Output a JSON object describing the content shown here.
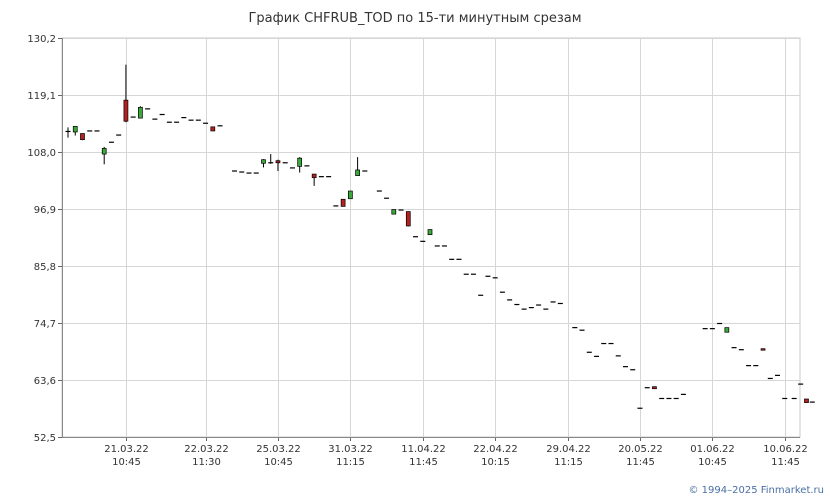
{
  "title": "График CHFRUB_TOD по 15-ти минутным срезам",
  "copyright": "© 1994–2025 Finmarket.ru",
  "chart_data": {
    "type": "candlestick",
    "title": "График CHFRUB_TOD по 15-ти минутным срезам",
    "xlabel": "",
    "ylabel": "",
    "ylim": [
      52.5,
      130.2
    ],
    "y_ticks": [
      "52,5",
      "63,6",
      "74,7",
      "85,8",
      "96,9",
      "108,0",
      "119,1",
      "130,2"
    ],
    "y_tick_values": [
      52.5,
      63.6,
      74.7,
      85.8,
      96.9,
      108.0,
      119.1,
      130.2
    ],
    "grid": true,
    "up_color": "#3aa83a",
    "down_color": "#b22222",
    "neutral_color": "#000000",
    "x_ticks": [
      {
        "index": 8,
        "date": "21.03.22",
        "time": "10:45"
      },
      {
        "index": 19,
        "date": "22.03.22",
        "time": "11:30"
      },
      {
        "index": 29,
        "date": "25.03.22",
        "time": "10:45"
      },
      {
        "index": 39,
        "date": "31.03.22",
        "time": "11:15"
      },
      {
        "index": 49,
        "date": "11.04.22",
        "time": "11:45"
      },
      {
        "index": 59,
        "date": "22.04.22",
        "time": "10:15"
      },
      {
        "index": 69,
        "date": "29.04.22",
        "time": "11:15"
      },
      {
        "index": 79,
        "date": "20.05.22",
        "time": "11:45"
      },
      {
        "index": 89,
        "date": "01.06.22",
        "time": "10:45"
      },
      {
        "index": 99,
        "date": "10.06.22",
        "time": "11:45"
      }
    ],
    "x_count": 100,
    "candles": [
      {
        "o": 112.0,
        "h": 112.8,
        "l": 110.8,
        "c": 112.0
      },
      {
        "o": 111.9,
        "h": 113.0,
        "l": 111.2,
        "c": 113.0
      },
      {
        "o": 111.6,
        "h": 111.6,
        "l": 110.3,
        "c": 110.4
      },
      {
        "o": 112.1,
        "h": 112.1,
        "l": 112.1,
        "c": 112.1
      },
      {
        "o": 112.1,
        "h": 112.1,
        "l": 112.1,
        "c": 112.1
      },
      {
        "o": 107.6,
        "h": 109.0,
        "l": 105.6,
        "c": 108.7
      },
      {
        "o": 109.9,
        "h": 109.9,
        "l": 109.9,
        "c": 109.9
      },
      {
        "o": 111.3,
        "h": 111.3,
        "l": 111.3,
        "c": 111.3
      },
      {
        "o": 118.1,
        "h": 125.0,
        "l": 113.8,
        "c": 114.0
      },
      {
        "o": 114.8,
        "h": 114.8,
        "l": 114.8,
        "c": 114.8
      },
      {
        "o": 114.6,
        "h": 116.9,
        "l": 114.6,
        "c": 116.7
      },
      {
        "o": 116.4,
        "h": 116.4,
        "l": 116.4,
        "c": 116.4
      },
      {
        "o": 114.4,
        "h": 114.4,
        "l": 114.4,
        "c": 114.4
      },
      {
        "o": 115.3,
        "h": 115.3,
        "l": 115.3,
        "c": 115.3
      },
      {
        "o": 113.8,
        "h": 113.8,
        "l": 113.8,
        "c": 113.8
      },
      {
        "o": 113.8,
        "h": 113.8,
        "l": 113.8,
        "c": 113.8
      },
      {
        "o": 114.7,
        "h": 114.7,
        "l": 114.7,
        "c": 114.7
      },
      {
        "o": 114.2,
        "h": 114.2,
        "l": 114.2,
        "c": 114.2
      },
      {
        "o": 114.2,
        "h": 114.2,
        "l": 114.2,
        "c": 114.2
      },
      {
        "o": 113.6,
        "h": 113.6,
        "l": 113.6,
        "c": 113.6
      },
      {
        "o": 112.9,
        "h": 112.9,
        "l": 112.1,
        "c": 112.1
      },
      {
        "o": 113.1,
        "h": 113.1,
        "l": 113.1,
        "c": 113.1
      },
      {
        "o": null,
        "h": null,
        "l": null,
        "c": null
      },
      {
        "o": 104.3,
        "h": 104.3,
        "l": 104.3,
        "c": 104.3
      },
      {
        "o": 104.1,
        "h": 104.1,
        "l": 104.1,
        "c": 104.1
      },
      {
        "o": 103.9,
        "h": 103.9,
        "l": 103.9,
        "c": 103.9
      },
      {
        "o": 103.9,
        "h": 103.9,
        "l": 103.9,
        "c": 103.9
      },
      {
        "o": 105.8,
        "h": 106.6,
        "l": 105.0,
        "c": 106.5
      },
      {
        "o": 105.9,
        "h": 107.6,
        "l": 105.7,
        "c": 106.1
      },
      {
        "o": 106.3,
        "h": 106.5,
        "l": 104.3,
        "c": 105.9
      },
      {
        "o": 105.9,
        "h": 105.9,
        "l": 105.9,
        "c": 105.9
      },
      {
        "o": 104.9,
        "h": 104.9,
        "l": 104.9,
        "c": 104.9
      },
      {
        "o": 105.2,
        "h": 107.0,
        "l": 104.0,
        "c": 106.8
      },
      {
        "o": 105.3,
        "h": 105.3,
        "l": 105.3,
        "c": 105.3
      },
      {
        "o": 103.7,
        "h": 103.7,
        "l": 101.4,
        "c": 103.0
      },
      {
        "o": 103.2,
        "h": 103.2,
        "l": 103.2,
        "c": 103.2
      },
      {
        "o": 103.2,
        "h": 103.2,
        "l": 103.2,
        "c": 103.2
      },
      {
        "o": 97.5,
        "h": 97.5,
        "l": 97.5,
        "c": 97.5
      },
      {
        "o": 98.8,
        "h": 98.8,
        "l": 97.4,
        "c": 97.4
      },
      {
        "o": 98.9,
        "h": 100.4,
        "l": 98.9,
        "c": 100.4
      },
      {
        "o": 103.4,
        "h": 107.0,
        "l": 103.4,
        "c": 104.5
      },
      {
        "o": 104.3,
        "h": 104.3,
        "l": 104.3,
        "c": 104.3
      },
      {
        "o": null,
        "h": null,
        "l": null,
        "c": null
      },
      {
        "o": 100.4,
        "h": 100.4,
        "l": 100.4,
        "c": 100.4
      },
      {
        "o": 99.0,
        "h": 99.0,
        "l": 99.0,
        "c": 99.0
      },
      {
        "o": 95.9,
        "h": 96.8,
        "l": 95.9,
        "c": 96.8
      },
      {
        "o": 96.7,
        "h": 96.7,
        "l": 96.7,
        "c": 96.7
      },
      {
        "o": 96.4,
        "h": 96.4,
        "l": 93.5,
        "c": 93.6
      },
      {
        "o": 91.5,
        "h": 91.5,
        "l": 91.5,
        "c": 91.5
      },
      {
        "o": 90.6,
        "h": 90.6,
        "l": 90.6,
        "c": 90.6
      },
      {
        "o": 91.9,
        "h": 92.9,
        "l": 91.9,
        "c": 92.9
      },
      {
        "o": 89.7,
        "h": 89.7,
        "l": 89.7,
        "c": 89.7
      },
      {
        "o": 89.7,
        "h": 89.7,
        "l": 89.7,
        "c": 89.7
      },
      {
        "o": 87.1,
        "h": 87.1,
        "l": 87.1,
        "c": 87.1
      },
      {
        "o": 87.1,
        "h": 87.1,
        "l": 87.1,
        "c": 87.1
      },
      {
        "o": 84.2,
        "h": 84.2,
        "l": 84.2,
        "c": 84.2
      },
      {
        "o": 84.2,
        "h": 84.2,
        "l": 84.2,
        "c": 84.2
      },
      {
        "o": 80.1,
        "h": 80.1,
        "l": 80.1,
        "c": 80.1
      },
      {
        "o": 83.8,
        "h": 83.8,
        "l": 83.8,
        "c": 83.8
      },
      {
        "o": 83.5,
        "h": 83.5,
        "l": 83.5,
        "c": 83.5
      },
      {
        "o": 80.7,
        "h": 80.7,
        "l": 80.7,
        "c": 80.7
      },
      {
        "o": 79.2,
        "h": 79.2,
        "l": 79.2,
        "c": 79.2
      },
      {
        "o": 78.3,
        "h": 78.3,
        "l": 78.3,
        "c": 78.3
      },
      {
        "o": 77.4,
        "h": 77.4,
        "l": 77.4,
        "c": 77.4
      },
      {
        "o": 77.7,
        "h": 77.7,
        "l": 77.7,
        "c": 77.7
      },
      {
        "o": 78.2,
        "h": 78.2,
        "l": 78.2,
        "c": 78.2
      },
      {
        "o": 77.4,
        "h": 77.4,
        "l": 77.4,
        "c": 77.4
      },
      {
        "o": 78.8,
        "h": 78.8,
        "l": 78.8,
        "c": 78.8
      },
      {
        "o": 78.5,
        "h": 78.5,
        "l": 78.5,
        "c": 78.5
      },
      {
        "o": null,
        "h": null,
        "l": null,
        "c": null
      },
      {
        "o": 73.8,
        "h": 73.8,
        "l": 73.8,
        "c": 73.8
      },
      {
        "o": 73.3,
        "h": 73.3,
        "l": 73.3,
        "c": 73.3
      },
      {
        "o": 69.0,
        "h": 69.0,
        "l": 69.0,
        "c": 69.0
      },
      {
        "o": 68.2,
        "h": 68.2,
        "l": 68.2,
        "c": 68.2
      },
      {
        "o": 70.7,
        "h": 70.7,
        "l": 70.7,
        "c": 70.7
      },
      {
        "o": 70.7,
        "h": 70.7,
        "l": 70.7,
        "c": 70.7
      },
      {
        "o": 68.3,
        "h": 68.3,
        "l": 68.3,
        "c": 68.3
      },
      {
        "o": 66.2,
        "h": 66.2,
        "l": 66.2,
        "c": 66.2
      },
      {
        "o": 65.6,
        "h": 65.6,
        "l": 65.6,
        "c": 65.6
      },
      {
        "o": 58.1,
        "h": 58.1,
        "l": 58.1,
        "c": 58.1
      },
      {
        "o": 62.1,
        "h": 62.1,
        "l": 62.1,
        "c": 62.1
      },
      {
        "o": 62.3,
        "h": 62.3,
        "l": 61.9,
        "c": 61.9
      },
      {
        "o": 60.0,
        "h": 60.0,
        "l": 60.0,
        "c": 60.0
      },
      {
        "o": 60.0,
        "h": 60.0,
        "l": 60.0,
        "c": 60.0
      },
      {
        "o": 60.0,
        "h": 60.0,
        "l": 60.0,
        "c": 60.0
      },
      {
        "o": 60.8,
        "h": 60.8,
        "l": 60.8,
        "c": 60.8
      },
      {
        "o": null,
        "h": null,
        "l": null,
        "c": null
      },
      {
        "o": null,
        "h": null,
        "l": null,
        "c": null
      },
      {
        "o": 73.6,
        "h": 73.6,
        "l": 73.6,
        "c": 73.6
      },
      {
        "o": 73.6,
        "h": 73.6,
        "l": 73.6,
        "c": 73.6
      },
      {
        "o": 74.6,
        "h": 74.6,
        "l": 74.6,
        "c": 74.6
      },
      {
        "o": 72.9,
        "h": 73.8,
        "l": 72.9,
        "c": 73.8
      },
      {
        "o": 69.9,
        "h": 69.9,
        "l": 69.9,
        "c": 69.9
      },
      {
        "o": 69.5,
        "h": 69.5,
        "l": 69.5,
        "c": 69.5
      },
      {
        "o": 66.4,
        "h": 66.4,
        "l": 66.4,
        "c": 66.4
      },
      {
        "o": 66.4,
        "h": 66.4,
        "l": 66.4,
        "c": 66.4
      },
      {
        "o": 69.7,
        "h": 69.7,
        "l": 69.4,
        "c": 69.4
      },
      {
        "o": 63.9,
        "h": 63.9,
        "l": 63.9,
        "c": 63.9
      },
      {
        "o": 64.5,
        "h": 64.5,
        "l": 64.5,
        "c": 64.5
      },
      {
        "o": 60.0,
        "h": 60.0,
        "l": 60.0,
        "c": 60.0
      }
    ],
    "tail_candles": [
      {
        "slot": 100.3,
        "o": 60.0,
        "h": 60.0,
        "l": 60.0,
        "c": 60.0
      },
      {
        "slot": 101.2,
        "o": 62.8,
        "h": 62.8,
        "l": 62.8,
        "c": 62.8
      },
      {
        "slot": 102.0,
        "o": 59.9,
        "h": 59.9,
        "l": 59.2,
        "c": 59.2
      },
      {
        "slot": 102.8,
        "o": 59.3,
        "h": 59.3,
        "l": 59.3,
        "c": 59.3
      }
    ]
  }
}
